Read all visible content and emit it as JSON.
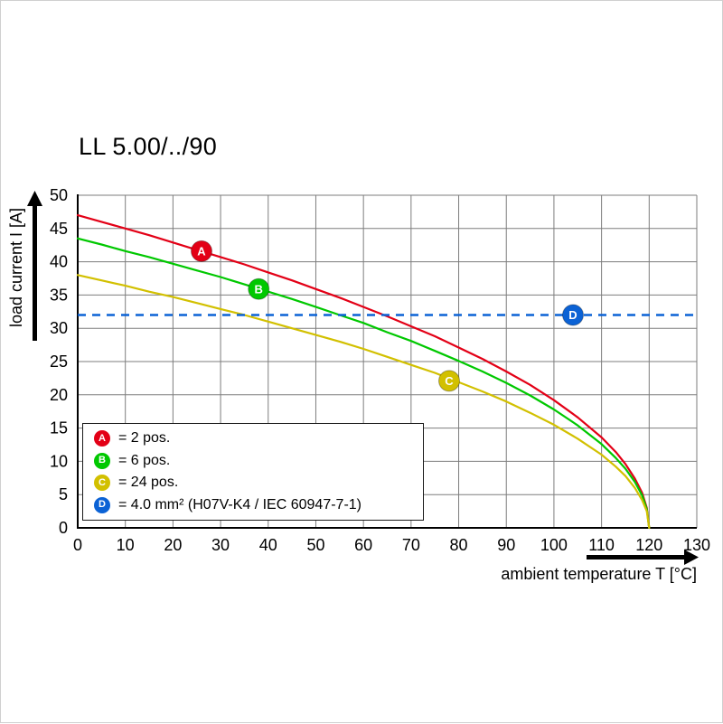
{
  "chart_data": {
    "type": "line",
    "title": "LL 5.00/../90",
    "xlabel": "ambient temperature T [°C]",
    "ylabel": "load current I [A]",
    "xlim": [
      0,
      130
    ],
    "ylim": [
      0,
      50
    ],
    "xticks": [
      0,
      10,
      20,
      30,
      40,
      50,
      60,
      70,
      80,
      90,
      100,
      110,
      120,
      130
    ],
    "yticks": [
      0,
      5,
      10,
      15,
      20,
      25,
      30,
      35,
      40,
      45,
      50
    ],
    "grid": true,
    "legend_position": "lower left",
    "series": [
      {
        "name": "A",
        "legend_label": "= 2 pos.",
        "color": "#e30016",
        "type": "curve",
        "x": [
          0,
          5,
          10,
          15,
          20,
          25,
          30,
          35,
          40,
          45,
          50,
          55,
          60,
          65,
          70,
          75,
          80,
          85,
          90,
          95,
          100,
          105,
          110,
          113,
          115,
          117,
          118.5,
          119.5,
          120
        ],
        "y": [
          47,
          46,
          45,
          44,
          42.9,
          41.8,
          40.7,
          39.6,
          38.4,
          37.2,
          35.9,
          34.6,
          33.2,
          31.8,
          30.3,
          28.8,
          27.1,
          25.4,
          23.5,
          21.5,
          19.2,
          16.6,
          13.6,
          11.4,
          9.6,
          7.4,
          5.3,
          3.0,
          0
        ],
        "marker": {
          "x": 26,
          "y": 41.6
        }
      },
      {
        "name": "B",
        "legend_label": "= 6 pos.",
        "color": "#00c800",
        "type": "curve",
        "x": [
          0,
          5,
          10,
          15,
          20,
          25,
          30,
          35,
          40,
          45,
          50,
          55,
          60,
          65,
          70,
          75,
          80,
          85,
          90,
          95,
          100,
          105,
          110,
          113,
          115,
          117,
          118.5,
          119.5,
          120
        ],
        "y": [
          43.5,
          42.6,
          41.6,
          40.7,
          39.7,
          38.7,
          37.7,
          36.6,
          35.5,
          34.4,
          33.2,
          32.0,
          30.8,
          29.4,
          28.1,
          26.6,
          25.1,
          23.5,
          21.8,
          19.9,
          17.8,
          15.4,
          12.6,
          10.5,
          8.9,
          6.9,
          4.9,
          2.8,
          0
        ],
        "marker": {
          "x": 38,
          "y": 35.9
        }
      },
      {
        "name": "C",
        "legend_label": "= 24 pos.",
        "color": "#d2c000",
        "type": "curve",
        "x": [
          0,
          5,
          10,
          15,
          20,
          25,
          30,
          35,
          40,
          45,
          50,
          55,
          60,
          65,
          70,
          75,
          80,
          85,
          90,
          95,
          100,
          105,
          110,
          113,
          115,
          117,
          118.5,
          119.5,
          120
        ],
        "y": [
          38,
          37.2,
          36.4,
          35.5,
          34.7,
          33.8,
          32.9,
          32.0,
          31.0,
          30.0,
          29.0,
          28.0,
          26.9,
          25.7,
          24.5,
          23.3,
          21.9,
          20.5,
          19.0,
          17.3,
          15.5,
          13.4,
          11.0,
          9.2,
          7.8,
          6.0,
          4.2,
          2.5,
          0
        ],
        "marker": {
          "x": 78,
          "y": 22.1
        }
      },
      {
        "name": "D",
        "legend_label": "= 4.0 mm² (H07V-K4 / IEC 60947-7-1)",
        "color": "#0b62d5",
        "type": "dashed-horizontal",
        "value": 32,
        "x_range": [
          0,
          130
        ],
        "marker": {
          "x": 104,
          "y": 32
        }
      }
    ]
  }
}
